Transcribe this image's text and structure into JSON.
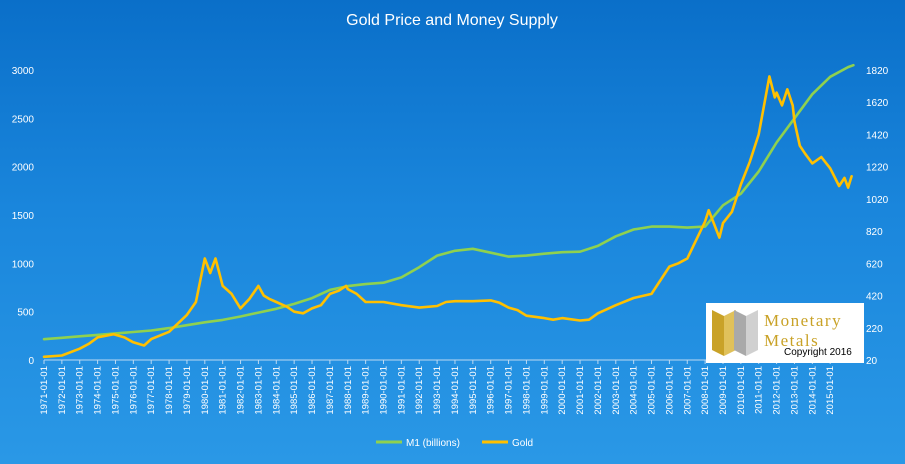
{
  "colors": {
    "m1": "#8fd14f",
    "gold": "#ffc000",
    "text": "#ffffff"
  },
  "chart_data": {
    "type": "line",
    "title": "Gold Price and Money Supply",
    "x_categories": [
      "1971-01-01",
      "1972-01-01",
      "1973-01-01",
      "1974-01-01",
      "1975-01-01",
      "1976-01-01",
      "1977-01-01",
      "1978-01-01",
      "1979-01-01",
      "1980-01-01",
      "1981-01-01",
      "1982-01-01",
      "1983-01-01",
      "1984-01-01",
      "1985-01-01",
      "1986-01-01",
      "1987-01-01",
      "1988-01-01",
      "1989-01-01",
      "1990-01-01",
      "1991-01-01",
      "1992-01-01",
      "1993-01-01",
      "1994-01-01",
      "1995-01-01",
      "1996-01-01",
      "1997-01-01",
      "1998-01-01",
      "1999-01-01",
      "2000-01-01",
      "2001-01-01",
      "2002-01-01",
      "2003-01-01",
      "2004-01-01",
      "2005-01-01",
      "2006-01-01",
      "2007-01-01",
      "2008-01-01",
      "2009-01-01",
      "2010-01-01",
      "2011-01-01",
      "2012-01-01",
      "2013-01-01",
      "2014-01-01",
      "2015-01-01"
    ],
    "y_left": {
      "min": 0,
      "max": 3000,
      "ticks": [
        "0",
        "500",
        "1000",
        "1500",
        "2000",
        "2500",
        "3000"
      ]
    },
    "y_right": {
      "min": 20,
      "max": 1820,
      "ticks": [
        "20",
        "220",
        "420",
        "620",
        "820",
        "1020",
        "1220",
        "1420",
        "1620",
        "1820"
      ]
    },
    "legend_position": "bottom",
    "series": [
      {
        "name": "M1 (billions)",
        "axis": "left",
        "color": "#8fd14f",
        "x": [
          1971,
          1972,
          1973,
          1974,
          1975,
          1976,
          1977,
          1978,
          1979,
          1980,
          1981,
          1982,
          1983,
          1984,
          1985,
          1986,
          1987,
          1988,
          1989,
          1990,
          1991,
          1992,
          1993,
          1994,
          1995,
          1996,
          1997,
          1998,
          1999,
          2000,
          2001,
          2002,
          2003,
          2004,
          2005,
          2006,
          2007,
          2008,
          2009,
          2010,
          2011,
          2012,
          2013,
          2014,
          2015,
          2016,
          2016.3
        ],
        "values": [
          215,
          230,
          245,
          260,
          275,
          290,
          305,
          330,
          360,
          390,
          415,
          450,
          490,
          530,
          580,
          640,
          725,
          765,
          785,
          800,
          855,
          960,
          1080,
          1130,
          1150,
          1110,
          1070,
          1080,
          1100,
          1115,
          1120,
          1180,
          1280,
          1350,
          1380,
          1380,
          1370,
          1380,
          1600,
          1720,
          1950,
          2250,
          2500,
          2750,
          2930,
          3030,
          3050
        ]
      },
      {
        "name": "Gold",
        "axis": "right",
        "color": "#ffc000",
        "x": [
          1971,
          1972,
          1973,
          1973.5,
          1974,
          1974.9,
          1975.5,
          1976,
          1976.6,
          1977,
          1978,
          1979,
          1979.5,
          1980,
          1980.3,
          1980.6,
          1981,
          1981.5,
          1982,
          1982.5,
          1983,
          1983.3,
          1983.6,
          1984,
          1984.6,
          1985,
          1985.5,
          1986,
          1986.5,
          1987,
          1987.5,
          1987.9,
          1988,
          1988.5,
          1989,
          1989.5,
          1990,
          1991,
          1992,
          1993,
          1993.5,
          1994,
          1995,
          1996,
          1996.5,
          1997,
          1997.5,
          1998,
          1999,
          1999.5,
          2000,
          2001,
          2001.5,
          2002,
          2003,
          2004,
          2005,
          2006,
          2006.5,
          2007,
          2008,
          2008.2,
          2008.8,
          2009,
          2009.5,
          2010,
          2010.5,
          2011,
          2011.6,
          2011.9,
          2012,
          2012.3,
          2012.6,
          2012.9,
          2013,
          2013.3,
          2013.6,
          2014,
          2014.5,
          2015,
          2015.5,
          2015.8,
          2016,
          2016.2
        ],
        "values": [
          40,
          48,
          90,
          120,
          160,
          180,
          160,
          130,
          110,
          150,
          195,
          300,
          380,
          650,
          560,
          650,
          480,
          430,
          340,
          400,
          480,
          420,
          400,
          380,
          350,
          320,
          310,
          340,
          360,
          430,
          450,
          480,
          460,
          430,
          380,
          380,
          380,
          360,
          345,
          355,
          380,
          385,
          385,
          390,
          375,
          345,
          330,
          295,
          280,
          270,
          280,
          265,
          270,
          310,
          360,
          405,
          430,
          600,
          620,
          650,
          880,
          950,
          780,
          870,
          940,
          1110,
          1250,
          1420,
          1780,
          1650,
          1680,
          1600,
          1700,
          1600,
          1500,
          1350,
          1300,
          1240,
          1280,
          1210,
          1100,
          1150,
          1090,
          1160
        ]
      }
    ]
  },
  "logo": {
    "line1": "Monetary",
    "line2": "Metals",
    "copyright": "Copyright 2016"
  }
}
